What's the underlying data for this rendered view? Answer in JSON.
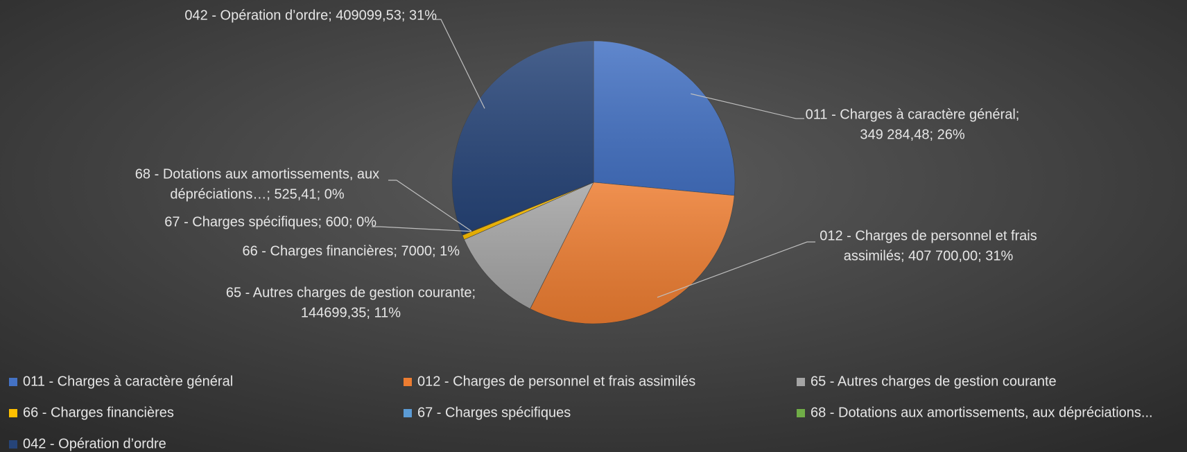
{
  "chart_data": {
    "type": "pie",
    "categories": [
      "011 - Charges à caractère général",
      "012 - Charges de personnel et frais assimilés",
      "65 - Autres charges de gestion courante",
      "66 - Charges financières",
      "67 - Charges spécifiques",
      "68 - Dotations aux amortissements, aux dépréciations...",
      "042 - Opération d’ordre"
    ],
    "values": [
      349284.48,
      407700.0,
      144699.35,
      7000,
      600,
      525.41,
      409099.53
    ],
    "colors": [
      "#4472c4",
      "#ed7d31",
      "#a5a5a5",
      "#ffc000",
      "#5b9bd5",
      "#70ad47",
      "#264478"
    ],
    "data_labels": [
      [
        "011 - Charges à caractère général;",
        "349 284,48; 26%"
      ],
      [
        "012 - Charges de personnel et frais",
        "assimilés; 407 700,00; 31%"
      ],
      [
        "65 - Autres charges de gestion courante;",
        "144699,35; 11%"
      ],
      [
        "66 - Charges financières; 7000; 1%"
      ],
      [
        "67 - Charges spécifiques; 600; 0%"
      ],
      [
        "68 - Dotations aux amortissements, aux",
        "dépréciations…; 525,41; 0%"
      ],
      [
        "042 - Opération d’ordre; 409099,53; 31%"
      ]
    ],
    "legend": "bottom"
  }
}
